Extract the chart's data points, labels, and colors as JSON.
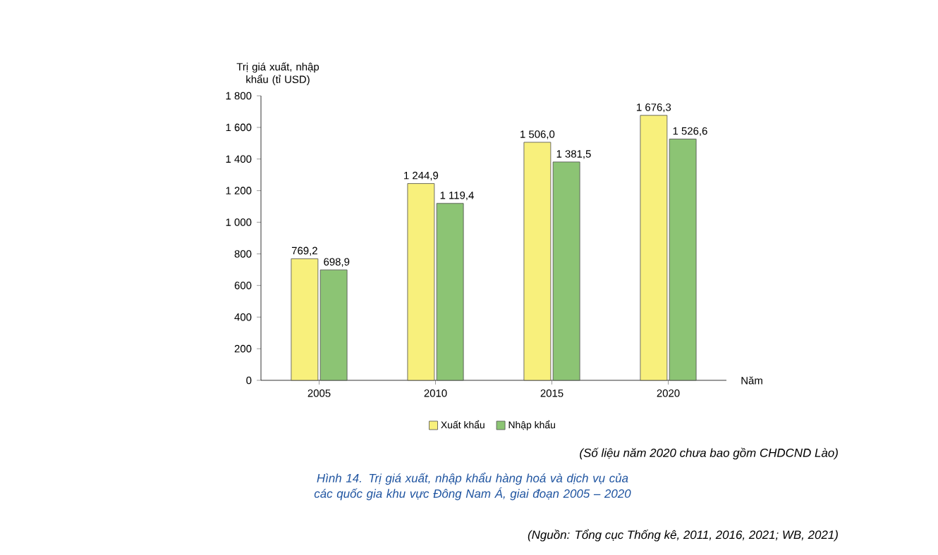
{
  "chart_data": {
    "type": "bar",
    "ylabel": "Trị giá xuất, nhập khẩu (tỉ USD)",
    "xlabel": "Năm",
    "categories": [
      "2005",
      "2010",
      "2015",
      "2020"
    ],
    "ylim": [
      0,
      1800
    ],
    "yticks": [
      0,
      200,
      400,
      600,
      800,
      {
        "value": 1000,
        "label": "1 000"
      },
      {
        "value": 1200,
        "label": "1 200"
      },
      {
        "value": 1400,
        "label": "1 400"
      },
      {
        "value": 1600,
        "label": "1 600"
      },
      {
        "value": 1800,
        "label": "1 800"
      }
    ],
    "series": [
      {
        "name": "Xuất khẩu",
        "color": "#f8f07c",
        "values": [
          769.2,
          1244.9,
          1506.0,
          1676.3
        ],
        "value_labels": [
          "769,2",
          "1 244,9",
          "1 506,0",
          "1 676,3"
        ]
      },
      {
        "name": "Nhập khẩu",
        "color": "#8cc474",
        "values": [
          698.9,
          1119.4,
          1381.5,
          1526.6
        ],
        "value_labels": [
          "698,9",
          "1 119,4",
          "1 381,5",
          "1 526,6"
        ]
      }
    ],
    "legend": "bottom",
    "grid": false,
    "annotations": [
      "(Số liệu năm 2020 chưa bao gồm CHDCND Lào)",
      "Hình 14. Trị giá xuất, nhập khẩu hàng hoá và dịch vụ của các quốc gia khu vực Đông Nam Á, giai đoạn 2005 – 2020",
      "(Nguồn: Tổng cục Thống kê, 2011, 2016, 2021; WB, 2021)"
    ]
  }
}
